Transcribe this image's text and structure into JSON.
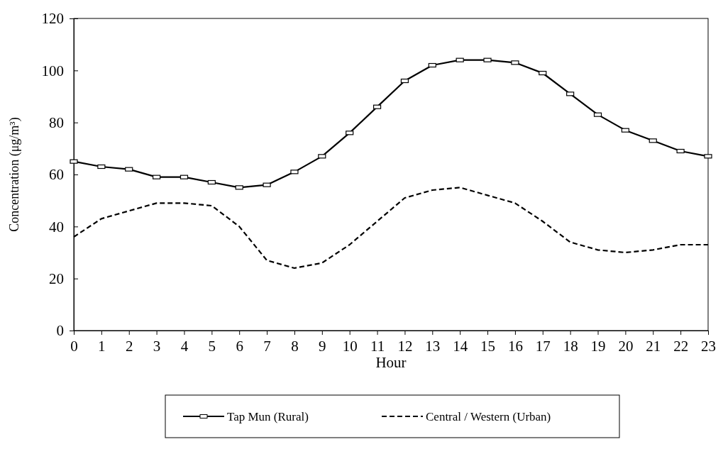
{
  "chart_data": {
    "type": "line",
    "xlabel": "Hour",
    "ylabel": "Concentration (μg/m³)",
    "x": [
      0,
      1,
      2,
      3,
      4,
      5,
      6,
      7,
      8,
      9,
      10,
      11,
      12,
      13,
      14,
      15,
      16,
      17,
      18,
      19,
      20,
      21,
      22,
      23
    ],
    "xlim": [
      0,
      23
    ],
    "xticks": [
      0,
      1,
      2,
      3,
      4,
      5,
      6,
      7,
      8,
      9,
      10,
      11,
      12,
      13,
      14,
      15,
      16,
      17,
      18,
      19,
      20,
      21,
      22,
      23
    ],
    "ylim": [
      0,
      120
    ],
    "yticks": [
      0,
      20,
      40,
      60,
      80,
      100,
      120
    ],
    "grid": false,
    "legend": "bottom",
    "series": [
      {
        "name": "Tap Mun (Rural)",
        "color": "#000000",
        "line_style": "solid",
        "marker": "square",
        "values": [
          65,
          63,
          62,
          59,
          59,
          57,
          55,
          56,
          61,
          67,
          76,
          86,
          96,
          102,
          104,
          104,
          103,
          99,
          91,
          83,
          77,
          73,
          69,
          67
        ]
      },
      {
        "name": "Central / Western (Urban)",
        "color": "#000000",
        "line_style": "dashed",
        "marker": "none",
        "values": [
          36,
          43,
          46,
          49,
          49,
          48,
          40,
          27,
          24,
          26,
          33,
          42,
          51,
          54,
          55,
          52,
          49,
          42,
          34,
          31,
          30,
          31,
          33,
          33
        ]
      }
    ]
  }
}
